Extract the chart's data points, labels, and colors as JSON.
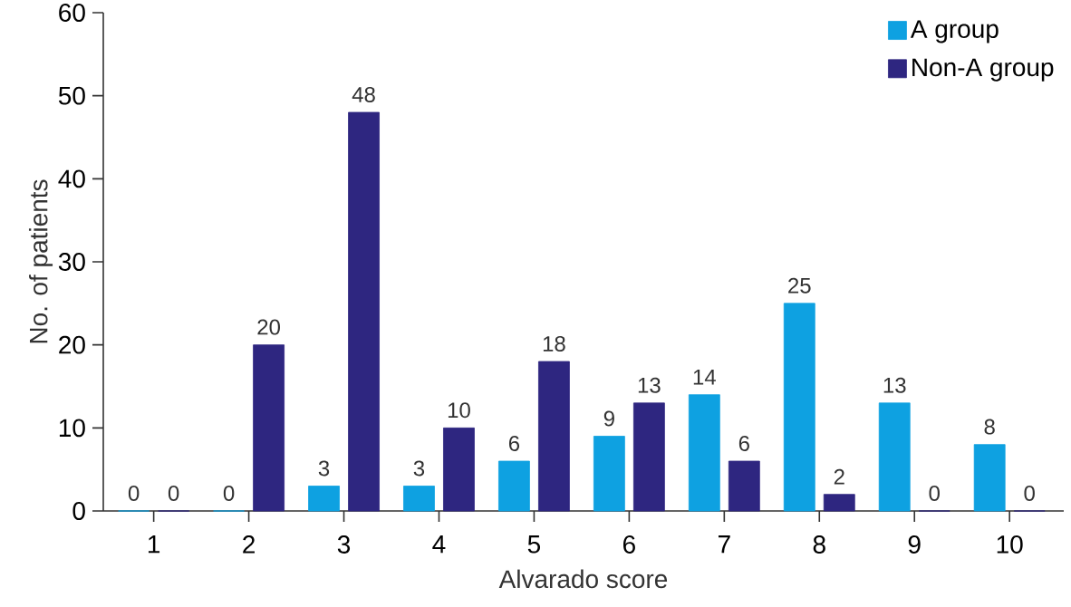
{
  "chart_data": {
    "type": "bar",
    "xlabel": "Alvarado score",
    "ylabel": "No. of patients",
    "categories": [
      "1",
      "2",
      "3",
      "4",
      "5",
      "6",
      "7",
      "8",
      "9",
      "10"
    ],
    "series": [
      {
        "name": "A group",
        "color": "#0ea1e1",
        "values": [
          0,
          0,
          3,
          3,
          6,
          9,
          14,
          25,
          13,
          8
        ]
      },
      {
        "name": "Non-A group",
        "color": "#2e2680",
        "values": [
          0,
          20,
          48,
          10,
          18,
          13,
          6,
          2,
          0,
          0
        ]
      }
    ],
    "ylim": [
      0,
      60
    ],
    "yticks": [
      0,
      10,
      20,
      30,
      40,
      50,
      60
    ],
    "data_labels": true,
    "legend": "top right",
    "grid": false
  }
}
